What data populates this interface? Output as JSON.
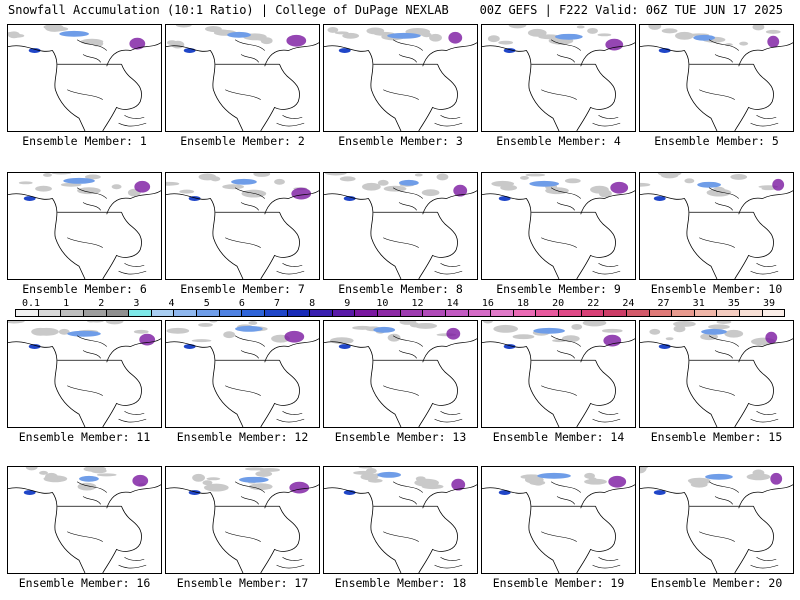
{
  "header": {
    "left": "Snowfall Accumulation (10:1 Ratio) | College of DuPage NEXLAB",
    "right": "00Z GEFS | F222 Valid: 06Z TUE JUN 17 2025"
  },
  "members": [
    {
      "label": "Ensemble Member: 1"
    },
    {
      "label": "Ensemble Member: 2"
    },
    {
      "label": "Ensemble Member: 3"
    },
    {
      "label": "Ensemble Member: 4"
    },
    {
      "label": "Ensemble Member: 5"
    },
    {
      "label": "Ensemble Member: 6"
    },
    {
      "label": "Ensemble Member: 7"
    },
    {
      "label": "Ensemble Member: 8"
    },
    {
      "label": "Ensemble Member: 9"
    },
    {
      "label": "Ensemble Member: 10"
    },
    {
      "label": "Ensemble Member: 11"
    },
    {
      "label": "Ensemble Member: 12"
    },
    {
      "label": "Ensemble Member: 13"
    },
    {
      "label": "Ensemble Member: 14"
    },
    {
      "label": "Ensemble Member: 15"
    },
    {
      "label": "Ensemble Member: 16"
    },
    {
      "label": "Ensemble Member: 17"
    },
    {
      "label": "Ensemble Member: 18"
    },
    {
      "label": "Ensemble Member: 19"
    },
    {
      "label": "Ensemble Member: 20"
    }
  ],
  "legend": {
    "labels": [
      "0.1",
      "1",
      "2",
      "3",
      "4",
      "5",
      "6",
      "7",
      "8",
      "9",
      "10",
      "12",
      "14",
      "16",
      "18",
      "20",
      "22",
      "24",
      "27",
      "31",
      "35",
      "39"
    ],
    "colors": [
      "#f2f2f2",
      "#d9d9d9",
      "#bfbfbf",
      "#9e9e9e",
      "#8f8f8f",
      "#7ee8e8",
      "#a9cef2",
      "#8fb7ee",
      "#6f9de8",
      "#4f82e2",
      "#2f64d8",
      "#2046c8",
      "#1a2cb8",
      "#3a1fb0",
      "#5a1aa8",
      "#7a18a0",
      "#8e2aa6",
      "#9e3cb0",
      "#b04ab8",
      "#c25ac2",
      "#d46ac6",
      "#e07ac8",
      "#ea6ab4",
      "#e85a9e",
      "#e04a88",
      "#d84076",
      "#cc3c66",
      "#d35a6a",
      "#e07a78",
      "#e89a8e",
      "#f0b6a8",
      "#f4ccc0",
      "#f8e0d6",
      "#fbeee8"
    ]
  }
}
